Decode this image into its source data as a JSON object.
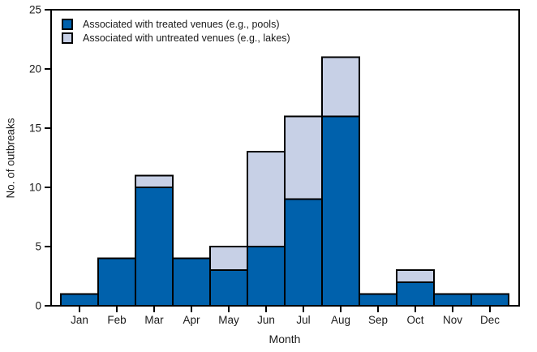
{
  "chart_data": {
    "type": "bar",
    "stacked": true,
    "title": "",
    "xlabel": "Month",
    "ylabel": "No. of outbreaks",
    "categories": [
      "Jan",
      "Feb",
      "Mar",
      "Apr",
      "May",
      "Jun",
      "Jul",
      "Aug",
      "Sep",
      "Oct",
      "Nov",
      "Dec"
    ],
    "series": [
      {
        "name": "Associated with treated venues (e.g., pools)",
        "color": "#0061AC",
        "values": [
          1,
          4,
          10,
          4,
          3,
          5,
          9,
          16,
          1,
          2,
          1,
          1
        ]
      },
      {
        "name": "Associated with untreated venues (e.g., lakes)",
        "color": "#C7D0E6",
        "values": [
          0,
          0,
          1,
          0,
          2,
          8,
          7,
          5,
          0,
          1,
          0,
          0
        ]
      }
    ],
    "ylim": [
      0,
      25
    ],
    "yticks": [
      0,
      5,
      10,
      15,
      20,
      25
    ],
    "grid": false,
    "legend_position": "top-left",
    "axis_color": "#000000",
    "text_color": "#1a1a1a",
    "plot_border": "box"
  }
}
